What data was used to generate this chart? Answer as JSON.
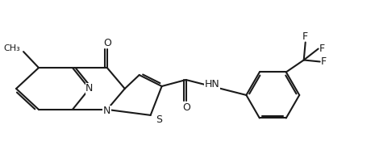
{
  "background": "#ffffff",
  "line_color": "#1a1a1a",
  "line_width": 1.5,
  "font_size": 9,
  "bold_font_size": 9,
  "labels": {
    "N1": "N",
    "N2": "N",
    "S": "S",
    "O_ketone": "O",
    "O_amide": "O",
    "HN": "HN",
    "CH3": "CH",
    "CH3_sub": "3",
    "F1": "F",
    "F2": "F",
    "F3": "F"
  }
}
